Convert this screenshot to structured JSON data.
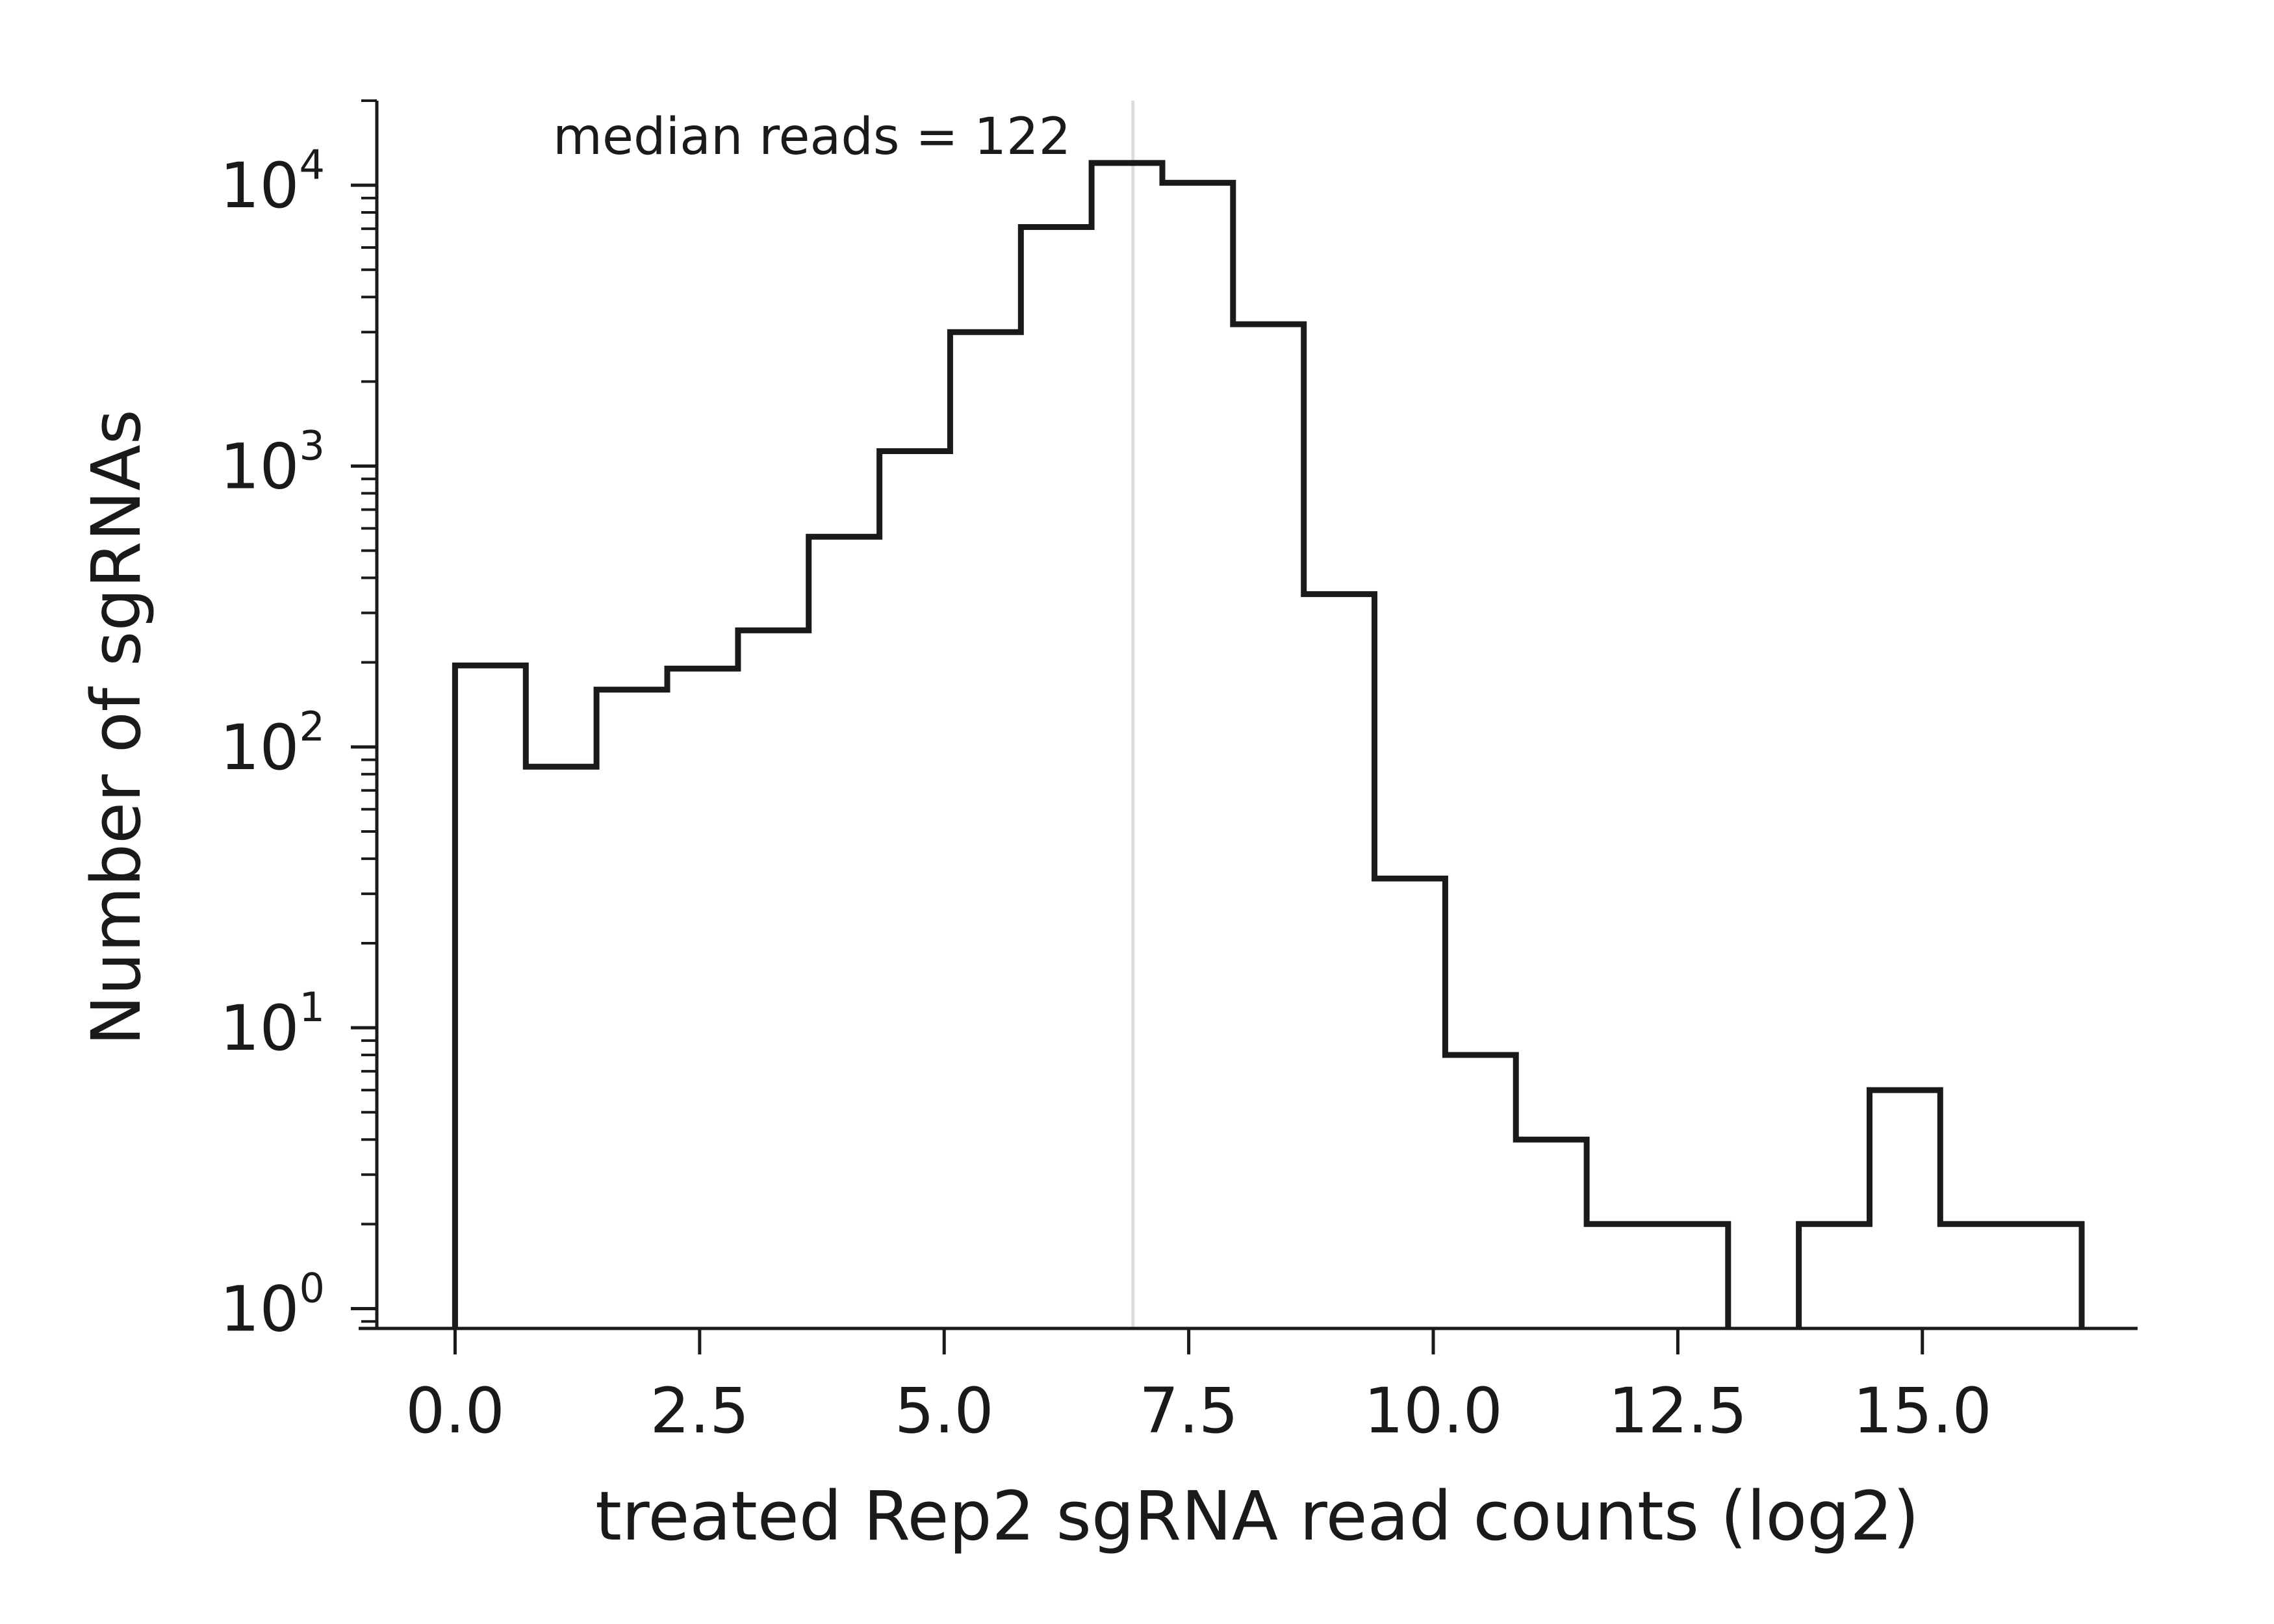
{
  "chart_data": {
    "type": "histogram",
    "xlabel": "treated Rep2 sgRNA read counts (log2)",
    "ylabel": "Number of sgRNAs",
    "yscale": "log",
    "xlim": [
      -0.8,
      17.2
    ],
    "ylim": [
      0.85,
      20000
    ],
    "x_ticks": [
      0.0,
      2.5,
      5.0,
      7.5,
      10.0,
      12.5,
      15.0
    ],
    "x_tick_labels": [
      "0.0",
      "2.5",
      "5.0",
      "7.5",
      "10.0",
      "12.5",
      "15.0"
    ],
    "y_ticks": [
      {
        "value": 1,
        "base": "10",
        "exp": "0"
      },
      {
        "value": 10,
        "base": "10",
        "exp": "1"
      },
      {
        "value": 100,
        "base": "10",
        "exp": "2"
      },
      {
        "value": 1000,
        "base": "10",
        "exp": "3"
      },
      {
        "value": 10000,
        "base": "10",
        "exp": "4"
      }
    ],
    "bin_edges": [
      0.0,
      0.723,
      1.446,
      2.169,
      2.892,
      3.615,
      4.338,
      5.061,
      5.784,
      6.507,
      7.23,
      7.953,
      8.676,
      9.399,
      10.122,
      10.845,
      11.568,
      12.291,
      13.014,
      13.737,
      14.46,
      15.183,
      15.906,
      16.629
    ],
    "counts": [
      195,
      85,
      160,
      190,
      260,
      560,
      1130,
      3000,
      7100,
      12000,
      10200,
      3200,
      350,
      34,
      8,
      4,
      2,
      2,
      0,
      2,
      6,
      2,
      2
    ],
    "median_log2": 6.93,
    "annotation": "median reads = 122",
    "grid": false,
    "legend": "none"
  }
}
